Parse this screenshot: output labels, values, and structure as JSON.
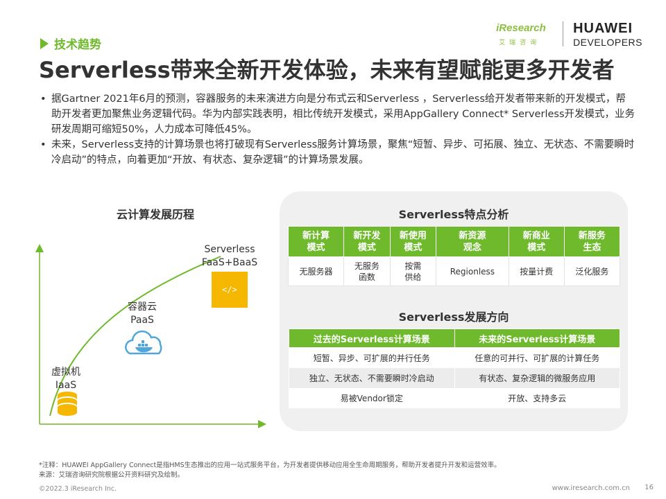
{
  "header": {
    "section_tag": "技术趋势",
    "title": "Serverless带来全新开发体验，未来有望赋能更多开发者",
    "iresearch_name": "iResearch",
    "iresearch_sub": "艾瑞咨询",
    "huawei_line1": "HUAWEI",
    "huawei_line2": "DEVELOPERS"
  },
  "bullets": [
    "据Gartner 2021年6月的预测，容器服务的未来演进方向是分布式云和Serverless ，Serverless给开发者带来新的开发模式，帮助开发者更加聚焦业务逻辑代码。华为内部实践表明，相比传统开发模式，采用AppGallery Connect* Serverless开发模式，业务研发周期可缩短50%，人力成本可降低45%。",
    "未来，Serverless支持的计算场景也将打破现有Serverless服务计算场景，聚焦“短暂、异步、可拓展、独立、无状态、不需要瞬时冷启动”的特点，向着更加“开放、有状态、复杂逻辑”的计算场景发展。"
  ],
  "bullet_symbol": "•",
  "cloud_history": {
    "title": "云计算发展历程",
    "stages": [
      {
        "line1": "虚拟机",
        "line2": "IaaS",
        "icon": "database-icon"
      },
      {
        "line1": "容器云",
        "line2": "PaaS",
        "icon": "docker-cloud-icon"
      },
      {
        "line1": "Serverless",
        "line2": "FaaS+BaaS",
        "icon": "code-icon"
      }
    ],
    "code_glyph": "</>"
  },
  "features": {
    "title": "Serverless特点分析",
    "headers": [
      "新计算\n模式",
      "新开发\n模式",
      "新使用\n模式",
      "新资源\n观念",
      "新商业\n模式",
      "新服务\n生态"
    ],
    "values": [
      "无服务器",
      "无服务\n函数",
      "按需\n供给",
      "Regionless",
      "按量计费",
      "泛化服务"
    ]
  },
  "directions": {
    "title": "Serverless发展方向",
    "headers": [
      "过去的Serverless计算场景",
      "未来的Serverless计算场景"
    ],
    "rows": [
      [
        "短暂、异步、可扩展的并行任务",
        "任意的可并行、可扩展的计算任务"
      ],
      [
        "独立、无状态、不需要瞬时冷启动",
        "有状态、复杂逻辑的微服务应用"
      ],
      [
        "易被Vendor锁定",
        "开放、支持多云"
      ]
    ]
  },
  "footer": {
    "note": "*注释：HUAWEI AppGallery Connect是指HMS生态推出的应用一站式服务平台，为开发者提供移动应用全生命周期服务，帮助开发者提升开发和运营效率。",
    "source": "来源：艾瑞咨询研究院根据公开资料研究及绘制。",
    "copyright": "©2022.3 iResearch Inc.",
    "site": "www.iresearch.com.cn",
    "page": "16"
  },
  "colors": {
    "accent": "#6fb92c",
    "code_box": "#f5b700",
    "cloud_icon": "#4ea6dc"
  }
}
